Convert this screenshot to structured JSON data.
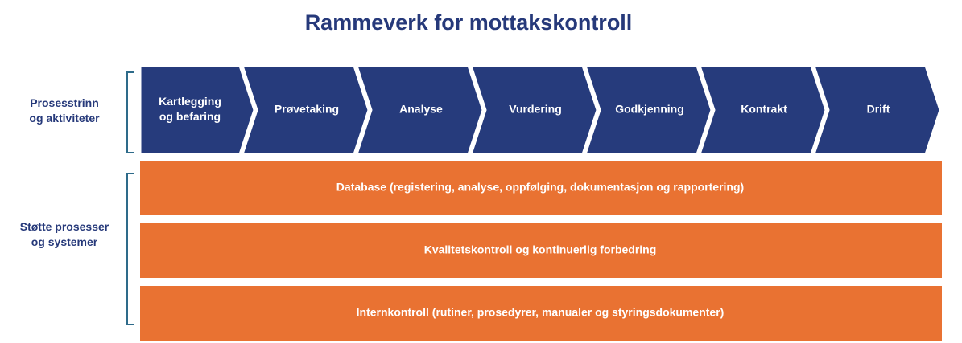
{
  "title": "Rammeverk for mottakskontroll",
  "sections": [
    {
      "label_lines": [
        "Prosesstrinn",
        "og aktiviteter"
      ]
    },
    {
      "label_lines": [
        "Støtte prosesser",
        "og systemer"
      ]
    }
  ],
  "steps": [
    {
      "lines": [
        "Kartlegging",
        "og befaring"
      ]
    },
    {
      "lines": [
        "Prøvetaking"
      ]
    },
    {
      "lines": [
        "Analyse"
      ]
    },
    {
      "lines": [
        "Vurdering"
      ]
    },
    {
      "lines": [
        "Godkjenning"
      ]
    },
    {
      "lines": [
        "Kontrakt"
      ]
    },
    {
      "lines": [
        "Drift"
      ]
    }
  ],
  "supports": [
    "Database (registering, analyse, oppfølging,  dokumentasjon og rapportering)",
    "Kvalitetskontroll og kontinuerlig forbedring",
    "Internkontroll (rutiner, prosedyrer, manualer og styringsdokumenter)"
  ]
}
